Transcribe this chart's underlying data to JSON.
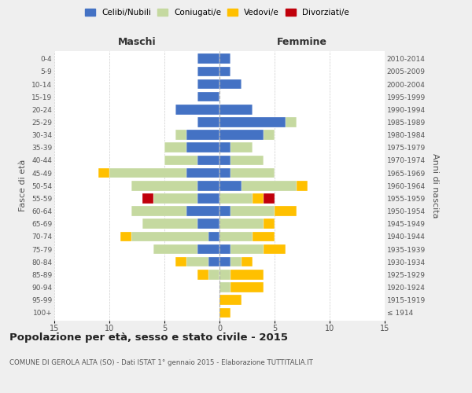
{
  "age_groups": [
    "0-4",
    "5-9",
    "10-14",
    "15-19",
    "20-24",
    "25-29",
    "30-34",
    "35-39",
    "40-44",
    "45-49",
    "50-54",
    "55-59",
    "60-64",
    "65-69",
    "70-74",
    "75-79",
    "80-84",
    "85-89",
    "90-94",
    "95-99",
    "100+"
  ],
  "birth_years": [
    "2010-2014",
    "2005-2009",
    "2000-2004",
    "1995-1999",
    "1990-1994",
    "1985-1989",
    "1980-1984",
    "1975-1979",
    "1970-1974",
    "1965-1969",
    "1960-1964",
    "1955-1959",
    "1950-1954",
    "1945-1949",
    "1940-1944",
    "1935-1939",
    "1930-1934",
    "1925-1929",
    "1920-1924",
    "1915-1919",
    "≤ 1914"
  ],
  "males": {
    "celibi": [
      2,
      2,
      2,
      2,
      4,
      2,
      3,
      3,
      2,
      3,
      2,
      2,
      3,
      2,
      1,
      2,
      1,
      0,
      0,
      0,
      0
    ],
    "coniugati": [
      0,
      0,
      0,
      0,
      0,
      0,
      1,
      2,
      3,
      7,
      6,
      4,
      5,
      5,
      7,
      4,
      2,
      1,
      0,
      0,
      0
    ],
    "vedovi": [
      0,
      0,
      0,
      0,
      0,
      0,
      0,
      0,
      0,
      1,
      0,
      0,
      0,
      0,
      1,
      0,
      1,
      1,
      0,
      0,
      0
    ],
    "divorziati": [
      0,
      0,
      0,
      0,
      0,
      0,
      0,
      0,
      0,
      0,
      0,
      1,
      0,
      0,
      0,
      0,
      0,
      0,
      0,
      0,
      0
    ]
  },
  "females": {
    "nubili": [
      1,
      1,
      2,
      0,
      3,
      6,
      4,
      1,
      1,
      1,
      2,
      0,
      1,
      0,
      0,
      1,
      1,
      0,
      0,
      0,
      0
    ],
    "coniugate": [
      0,
      0,
      0,
      0,
      0,
      1,
      1,
      2,
      3,
      4,
      5,
      3,
      4,
      4,
      3,
      3,
      1,
      1,
      1,
      0,
      0
    ],
    "vedove": [
      0,
      0,
      0,
      0,
      0,
      0,
      0,
      0,
      0,
      0,
      1,
      1,
      2,
      1,
      2,
      2,
      1,
      3,
      3,
      2,
      1
    ],
    "divorziate": [
      0,
      0,
      0,
      0,
      0,
      0,
      0,
      0,
      0,
      0,
      0,
      1,
      0,
      0,
      0,
      0,
      0,
      0,
      0,
      0,
      0
    ]
  },
  "colors": {
    "celibi_nubili": "#4472c4",
    "coniugati": "#c5d9a0",
    "vedovi": "#ffc000",
    "divorziati": "#c0000b"
  },
  "title": "Popolazione per età, sesso e stato civile - 2015",
  "subtitle": "COMUNE DI GEROLA ALTA (SO) - Dati ISTAT 1° gennaio 2015 - Elaborazione TUTTITALIA.IT",
  "ylabel_left": "Fasce di età",
  "ylabel_right": "Anni di nascita",
  "xlabel_males": "Maschi",
  "xlabel_females": "Femmine",
  "xlim": 15,
  "background_color": "#efefef",
  "plot_bg": "#ffffff"
}
